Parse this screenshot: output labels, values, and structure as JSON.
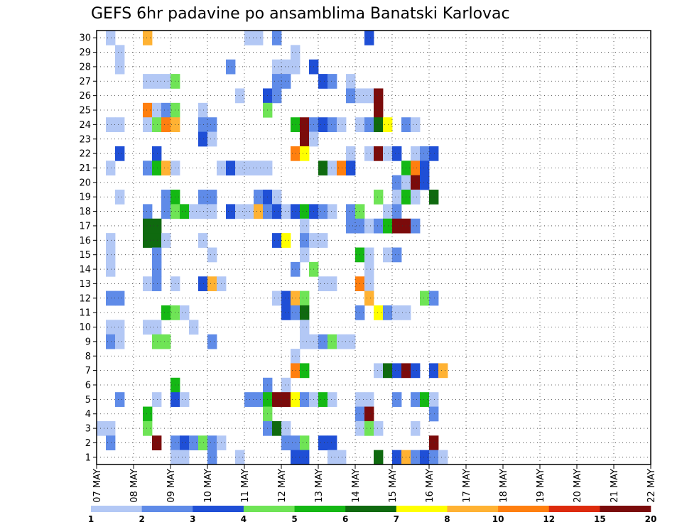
{
  "chart_data": {
    "type": "heatmap",
    "title": "GEFS 6hr padavine po ansamblima Banatski Karlovac",
    "xlabel": "",
    "ylabel": "",
    "x_tick_labels": [
      "07 MAY",
      "08 MAY",
      "09 MAY",
      "10 MAY",
      "11 MAY",
      "12 MAY",
      "13 MAY",
      "14 MAY",
      "15 MAY",
      "16 MAY",
      "17 MAY",
      "18 MAY",
      "19 MAY",
      "20 MAY",
      "21 MAY",
      "22 MAY"
    ],
    "y_range": [
      0,
      30
    ],
    "y_tick_labels": [
      1,
      2,
      3,
      4,
      5,
      6,
      7,
      8,
      9,
      10,
      11,
      12,
      13,
      14,
      15,
      16,
      17,
      18,
      19,
      20,
      21,
      22,
      23,
      24,
      25,
      26,
      27,
      28,
      29,
      30
    ],
    "x_steps_per_day": 4,
    "grid": "dotted",
    "colorbar": {
      "labels": [
        "1",
        "2",
        "3",
        "4",
        "5",
        "6",
        "7",
        "8",
        "10",
        "12",
        "15",
        "20"
      ],
      "colors": [
        "#b3c8f5",
        "#5f8be8",
        "#1f4fd6",
        "#6fe456",
        "#14b814",
        "#0f6a0f",
        "#ffff00",
        "#ffb233",
        "#ff7f0f",
        "#dd2b0d",
        "#7b0b0b"
      ],
      "legend_position": "bottom"
    },
    "cells": [
      [
        1,
        3,
        1
      ],
      [
        2,
        30,
        1
      ],
      [
        6,
        30,
        8
      ],
      [
        17,
        30,
        1
      ],
      [
        18,
        30,
        1
      ],
      [
        20,
        30,
        2
      ],
      [
        30,
        30,
        3
      ],
      [
        3,
        29,
        1
      ],
      [
        22,
        29,
        1
      ],
      [
        3,
        28,
        1
      ],
      [
        15,
        28,
        2
      ],
      [
        20,
        28,
        1
      ],
      [
        21,
        28,
        1
      ],
      [
        22,
        28,
        1
      ],
      [
        24,
        28,
        3
      ],
      [
        6,
        27,
        1
      ],
      [
        7,
        27,
        1
      ],
      [
        8,
        27,
        1
      ],
      [
        9,
        27,
        4
      ],
      [
        20,
        27,
        2
      ],
      [
        21,
        27,
        2
      ],
      [
        25,
        27,
        3
      ],
      [
        26,
        27,
        2
      ],
      [
        28,
        27,
        1
      ],
      [
        16,
        26,
        1
      ],
      [
        19,
        26,
        3
      ],
      [
        20,
        26,
        2
      ],
      [
        28,
        26,
        2
      ],
      [
        29,
        26,
        1
      ],
      [
        30,
        26,
        1
      ],
      [
        31,
        26,
        15
      ],
      [
        6,
        25,
        10
      ],
      [
        7,
        25,
        1
      ],
      [
        8,
        25,
        2
      ],
      [
        9,
        25,
        4
      ],
      [
        12,
        25,
        1
      ],
      [
        19,
        25,
        4
      ],
      [
        31,
        25,
        20
      ],
      [
        2,
        24,
        1
      ],
      [
        3,
        24,
        1
      ],
      [
        6,
        24,
        1
      ],
      [
        7,
        24,
        4
      ],
      [
        8,
        24,
        10
      ],
      [
        9,
        24,
        8
      ],
      [
        12,
        24,
        2
      ],
      [
        13,
        24,
        2
      ],
      [
        22,
        24,
        5
      ],
      [
        23,
        24,
        15
      ],
      [
        24,
        24,
        2
      ],
      [
        25,
        24,
        3
      ],
      [
        26,
        24,
        2
      ],
      [
        27,
        24,
        1
      ],
      [
        29,
        24,
        1
      ],
      [
        30,
        24,
        2
      ],
      [
        31,
        24,
        6
      ],
      [
        32,
        24,
        7
      ],
      [
        34,
        24,
        2
      ],
      [
        35,
        24,
        1
      ],
      [
        12,
        23,
        3
      ],
      [
        13,
        23,
        1
      ],
      [
        23,
        23,
        20
      ],
      [
        24,
        23,
        1
      ],
      [
        3,
        22,
        3
      ],
      [
        7,
        22,
        3
      ],
      [
        22,
        22,
        10
      ],
      [
        23,
        22,
        7
      ],
      [
        28,
        22,
        1
      ],
      [
        30,
        22,
        1
      ],
      [
        31,
        22,
        15
      ],
      [
        32,
        22,
        1
      ],
      [
        33,
        22,
        3
      ],
      [
        35,
        22,
        1
      ],
      [
        36,
        22,
        2
      ],
      [
        37,
        22,
        3
      ],
      [
        2,
        21,
        1
      ],
      [
        6,
        21,
        2
      ],
      [
        7,
        21,
        5
      ],
      [
        8,
        21,
        8
      ],
      [
        9,
        21,
        1
      ],
      [
        14,
        21,
        1
      ],
      [
        15,
        21,
        3
      ],
      [
        16,
        21,
        1
      ],
      [
        17,
        21,
        1
      ],
      [
        18,
        21,
        1
      ],
      [
        19,
        21,
        1
      ],
      [
        25,
        21,
        6
      ],
      [
        26,
        21,
        1
      ],
      [
        27,
        21,
        10
      ],
      [
        28,
        21,
        3
      ],
      [
        34,
        21,
        5
      ],
      [
        35,
        21,
        10
      ],
      [
        36,
        21,
        3
      ],
      [
        33,
        20,
        2
      ],
      [
        34,
        20,
        1
      ],
      [
        35,
        20,
        20
      ],
      [
        36,
        20,
        3
      ],
      [
        3,
        19,
        1
      ],
      [
        8,
        19,
        2
      ],
      [
        9,
        19,
        5
      ],
      [
        12,
        19,
        2
      ],
      [
        13,
        19,
        2
      ],
      [
        18,
        19,
        2
      ],
      [
        19,
        19,
        3
      ],
      [
        20,
        19,
        1
      ],
      [
        31,
        19,
        4
      ],
      [
        33,
        19,
        1
      ],
      [
        34,
        19,
        5
      ],
      [
        35,
        19,
        1
      ],
      [
        37,
        19,
        6
      ],
      [
        6,
        18,
        2
      ],
      [
        8,
        18,
        2
      ],
      [
        9,
        18,
        4
      ],
      [
        10,
        18,
        5
      ],
      [
        11,
        18,
        1
      ],
      [
        12,
        18,
        1
      ],
      [
        13,
        18,
        1
      ],
      [
        15,
        18,
        3
      ],
      [
        16,
        18,
        1
      ],
      [
        17,
        18,
        1
      ],
      [
        18,
        18,
        8
      ],
      [
        19,
        18,
        2
      ],
      [
        20,
        18,
        3
      ],
      [
        21,
        18,
        1
      ],
      [
        22,
        18,
        3
      ],
      [
        23,
        18,
        5
      ],
      [
        24,
        18,
        3
      ],
      [
        25,
        18,
        2
      ],
      [
        26,
        18,
        1
      ],
      [
        28,
        18,
        2
      ],
      [
        29,
        18,
        4
      ],
      [
        32,
        18,
        1
      ],
      [
        33,
        18,
        2
      ],
      [
        6,
        17,
        6
      ],
      [
        7,
        17,
        6
      ],
      [
        23,
        17,
        1
      ],
      [
        28,
        17,
        2
      ],
      [
        29,
        17,
        2
      ],
      [
        30,
        17,
        1
      ],
      [
        31,
        17,
        2
      ],
      [
        32,
        17,
        5
      ],
      [
        33,
        17,
        15
      ],
      [
        34,
        17,
        20
      ],
      [
        35,
        17,
        2
      ],
      [
        2,
        16,
        1
      ],
      [
        6,
        16,
        6
      ],
      [
        7,
        16,
        6
      ],
      [
        8,
        16,
        1
      ],
      [
        12,
        16,
        1
      ],
      [
        20,
        16,
        3
      ],
      [
        21,
        16,
        7
      ],
      [
        23,
        16,
        2
      ],
      [
        24,
        16,
        1
      ],
      [
        25,
        16,
        1
      ],
      [
        2,
        15,
        1
      ],
      [
        7,
        15,
        2
      ],
      [
        13,
        15,
        1
      ],
      [
        23,
        15,
        1
      ],
      [
        29,
        15,
        5
      ],
      [
        30,
        15,
        1
      ],
      [
        32,
        15,
        1
      ],
      [
        33,
        15,
        2
      ],
      [
        2,
        14,
        1
      ],
      [
        7,
        14,
        2
      ],
      [
        22,
        14,
        2
      ],
      [
        24,
        14,
        4
      ],
      [
        30,
        14,
        1
      ],
      [
        6,
        13,
        1
      ],
      [
        7,
        13,
        2
      ],
      [
        9,
        13,
        1
      ],
      [
        12,
        13,
        3
      ],
      [
        13,
        13,
        9
      ],
      [
        14,
        13,
        1
      ],
      [
        25,
        13,
        1
      ],
      [
        26,
        13,
        1
      ],
      [
        29,
        13,
        10
      ],
      [
        30,
        13,
        1
      ],
      [
        2,
        12,
        2
      ],
      [
        3,
        12,
        2
      ],
      [
        20,
        12,
        1
      ],
      [
        21,
        12,
        3
      ],
      [
        22,
        12,
        8
      ],
      [
        23,
        12,
        4
      ],
      [
        30,
        12,
        9
      ],
      [
        36,
        12,
        4
      ],
      [
        37,
        12,
        2
      ],
      [
        8,
        11,
        5
      ],
      [
        9,
        11,
        4
      ],
      [
        10,
        11,
        1
      ],
      [
        21,
        11,
        3
      ],
      [
        22,
        11,
        2
      ],
      [
        23,
        11,
        6
      ],
      [
        29,
        11,
        2
      ],
      [
        31,
        11,
        7
      ],
      [
        32,
        11,
        2
      ],
      [
        33,
        11,
        1
      ],
      [
        34,
        11,
        1
      ],
      [
        2,
        10,
        1
      ],
      [
        3,
        10,
        1
      ],
      [
        6,
        10,
        1
      ],
      [
        7,
        10,
        1
      ],
      [
        11,
        10,
        1
      ],
      [
        23,
        10,
        1
      ],
      [
        2,
        9,
        2
      ],
      [
        3,
        9,
        1
      ],
      [
        7,
        9,
        4
      ],
      [
        8,
        9,
        4
      ],
      [
        13,
        9,
        2
      ],
      [
        23,
        9,
        1
      ],
      [
        24,
        9,
        1
      ],
      [
        25,
        9,
        2
      ],
      [
        26,
        9,
        4
      ],
      [
        27,
        9,
        1
      ],
      [
        28,
        9,
        1
      ],
      [
        22,
        8,
        1
      ],
      [
        22,
        7,
        10
      ],
      [
        23,
        7,
        5
      ],
      [
        31,
        7,
        1
      ],
      [
        32,
        7,
        6
      ],
      [
        33,
        7,
        3
      ],
      [
        34,
        7,
        20
      ],
      [
        35,
        7,
        3
      ],
      [
        37,
        7,
        3
      ],
      [
        38,
        7,
        8
      ],
      [
        9,
        6,
        5
      ],
      [
        19,
        6,
        2
      ],
      [
        21,
        6,
        1
      ],
      [
        3,
        5,
        2
      ],
      [
        7,
        5,
        1
      ],
      [
        9,
        5,
        3
      ],
      [
        10,
        5,
        1
      ],
      [
        17,
        5,
        2
      ],
      [
        18,
        5,
        2
      ],
      [
        19,
        5,
        5
      ],
      [
        20,
        5,
        20
      ],
      [
        21,
        5,
        20
      ],
      [
        22,
        5,
        7
      ],
      [
        23,
        5,
        2
      ],
      [
        24,
        5,
        1
      ],
      [
        25,
        5,
        5
      ],
      [
        26,
        5,
        1
      ],
      [
        29,
        5,
        1
      ],
      [
        30,
        5,
        1
      ],
      [
        33,
        5,
        2
      ],
      [
        35,
        5,
        2
      ],
      [
        36,
        5,
        5
      ],
      [
        37,
        5,
        1
      ],
      [
        6,
        4,
        5
      ],
      [
        19,
        4,
        4
      ],
      [
        29,
        4,
        2
      ],
      [
        30,
        4,
        20
      ],
      [
        37,
        4,
        2
      ],
      [
        2,
        3,
        1
      ],
      [
        6,
        3,
        4
      ],
      [
        19,
        3,
        2
      ],
      [
        20,
        3,
        6
      ],
      [
        21,
        3,
        1
      ],
      [
        29,
        3,
        1
      ],
      [
        30,
        3,
        4
      ],
      [
        31,
        3,
        1
      ],
      [
        35,
        3,
        1
      ],
      [
        2,
        2,
        2
      ],
      [
        7,
        2,
        20
      ],
      [
        9,
        2,
        2
      ],
      [
        10,
        2,
        3
      ],
      [
        11,
        2,
        2
      ],
      [
        12,
        2,
        4
      ],
      [
        13,
        2,
        2
      ],
      [
        14,
        2,
        1
      ],
      [
        21,
        2,
        2
      ],
      [
        22,
        2,
        2
      ],
      [
        23,
        2,
        4
      ],
      [
        25,
        2,
        3
      ],
      [
        26,
        2,
        3
      ],
      [
        37,
        2,
        20
      ],
      [
        9,
        1,
        1
      ],
      [
        10,
        1,
        1
      ],
      [
        13,
        1,
        2
      ],
      [
        16,
        1,
        1
      ],
      [
        22,
        1,
        3
      ],
      [
        23,
        1,
        3
      ],
      [
        26,
        1,
        1
      ],
      [
        27,
        1,
        1
      ],
      [
        31,
        1,
        6
      ],
      [
        33,
        1,
        3
      ],
      [
        34,
        1,
        8
      ],
      [
        35,
        1,
        2
      ],
      [
        36,
        1,
        3
      ],
      [
        37,
        1,
        2
      ],
      [
        38,
        1,
        1
      ]
    ]
  }
}
